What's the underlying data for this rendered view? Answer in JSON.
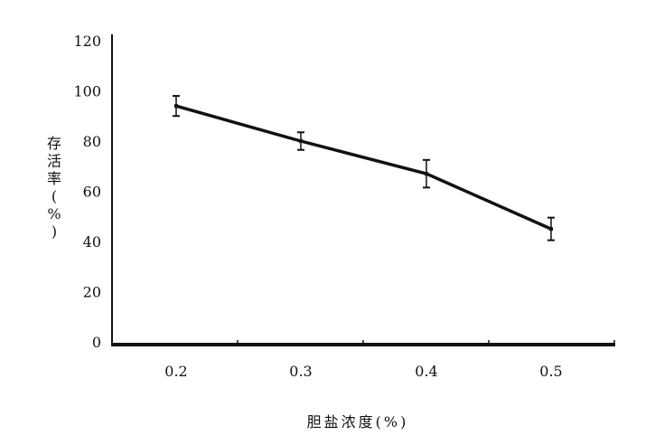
{
  "chart_data": {
    "type": "line",
    "title": "",
    "xlabel": "胆盐浓度(%)",
    "ylabel": "存活率(%)",
    "ylabel_chars": [
      "存",
      "活",
      "率",
      "(",
      "%",
      ")"
    ],
    "x": [
      0.2,
      0.3,
      0.4,
      0.5
    ],
    "x_tick_labels": [
      "0.2",
      "0.3",
      "0.4",
      "0.5"
    ],
    "y_ticks": [
      0,
      20,
      40,
      60,
      80,
      100,
      120
    ],
    "y_tick_labels": [
      "0",
      "20",
      "40",
      "60",
      "80",
      "100",
      "120"
    ],
    "ylim": [
      0,
      120
    ],
    "grid": false,
    "series": [
      {
        "values": [
          94,
          80,
          67,
          45
        ],
        "error": [
          4,
          3.5,
          5.5,
          4.5
        ],
        "color": "#111111"
      }
    ]
  }
}
